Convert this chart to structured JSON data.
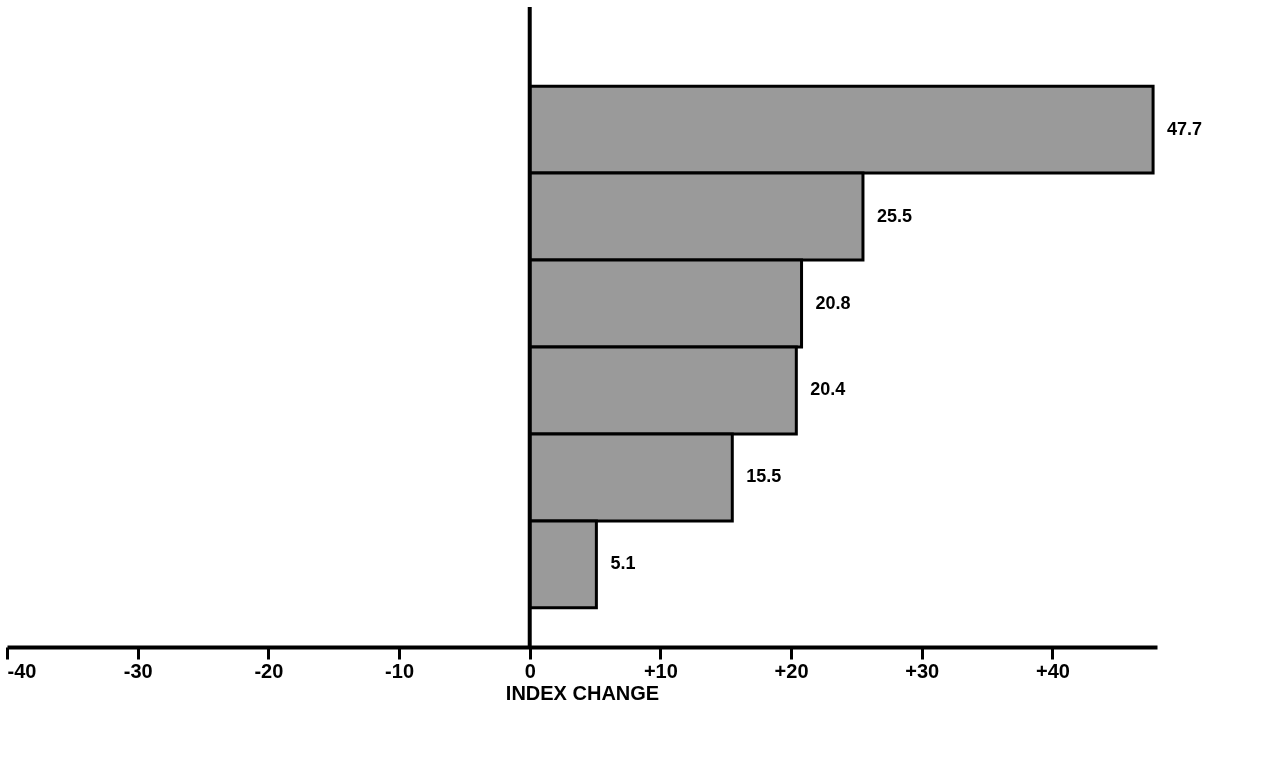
{
  "chart_data": {
    "type": "bar",
    "orientation": "horizontal",
    "xlabel": "INDEX CHANGE",
    "categories": [
      null,
      null,
      null,
      null,
      null,
      null
    ],
    "values": [
      47.7,
      25.5,
      20.8,
      20.4,
      15.5,
      5.1
    ],
    "color": "#9a9a9a",
    "data_labels": true,
    "grid": false,
    "xlim": [
      -40,
      48
    ],
    "xticks": [
      -40,
      -30,
      -20,
      -10,
      0,
      {
        "value": 10,
        "label": "+10"
      },
      {
        "value": 20,
        "label": "+20"
      },
      {
        "value": 30,
        "label": "+30"
      },
      {
        "value": 40,
        "label": "+40"
      }
    ],
    "ref_lines": [
      {
        "axis": "x",
        "value": 0,
        "color": "#000000"
      }
    ],
    "tick_labels": "x"
  }
}
